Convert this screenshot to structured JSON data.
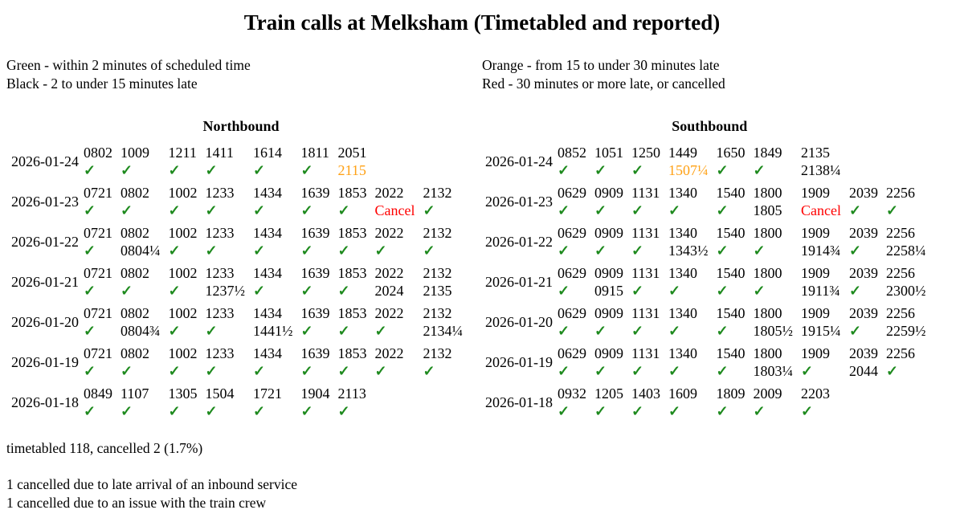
{
  "title": "Train calls at Melksham (Timetabled and reported)",
  "legend": {
    "green": "Green - within 2 minutes of scheduled time",
    "black": "Black - 2 to under 15 minutes late",
    "orange": "Orange - from 15 to under 30 minutes late",
    "red": "Red - 30 minutes or more late, or cancelled"
  },
  "colors": {
    "green": "#1e8a1e",
    "black": "#000000",
    "orange": "#ffa115",
    "red": "#ff0000"
  },
  "icons": {
    "check": "✓"
  },
  "cancel_label": "Cancel",
  "chart_data": {
    "type": "table",
    "status_meaning": {
      "green": "on time (within 2 minutes), shown as green check",
      "black": "2 to under 15 minutes late, actual time shown in black",
      "orange": "15 to under 30 minutes late, actual time shown in orange",
      "red": "30+ minutes late or cancelled, shown in red"
    },
    "sections": [
      {
        "name": "Northbound",
        "rows": [
          {
            "date": "2026-01-24",
            "calls": [
              {
                "time": "0802",
                "status": "green"
              },
              {
                "time": "1009",
                "status": "green"
              },
              {
                "time": "1211",
                "status": "green"
              },
              {
                "time": "1411",
                "status": "green"
              },
              {
                "time": "1614",
                "status": "green"
              },
              {
                "time": "1811",
                "status": "green"
              },
              {
                "time": "2051",
                "status": "orange",
                "actual": "2115"
              }
            ]
          },
          {
            "date": "2026-01-23",
            "calls": [
              {
                "time": "0721",
                "status": "green"
              },
              {
                "time": "0802",
                "status": "green"
              },
              {
                "time": "1002",
                "status": "green"
              },
              {
                "time": "1233",
                "status": "green"
              },
              {
                "time": "1434",
                "status": "green"
              },
              {
                "time": "1639",
                "status": "green"
              },
              {
                "time": "1853",
                "status": "green"
              },
              {
                "time": "2022",
                "status": "red",
                "actual": "Cancel"
              },
              {
                "time": "2132",
                "status": "green"
              }
            ]
          },
          {
            "date": "2026-01-22",
            "calls": [
              {
                "time": "0721",
                "status": "green"
              },
              {
                "time": "0802",
                "status": "black",
                "actual": "0804¼"
              },
              {
                "time": "1002",
                "status": "green"
              },
              {
                "time": "1233",
                "status": "green"
              },
              {
                "time": "1434",
                "status": "green"
              },
              {
                "time": "1639",
                "status": "green"
              },
              {
                "time": "1853",
                "status": "green"
              },
              {
                "time": "2022",
                "status": "green"
              },
              {
                "time": "2132",
                "status": "green"
              }
            ]
          },
          {
            "date": "2026-01-21",
            "calls": [
              {
                "time": "0721",
                "status": "green"
              },
              {
                "time": "0802",
                "status": "green"
              },
              {
                "time": "1002",
                "status": "green"
              },
              {
                "time": "1233",
                "status": "black",
                "actual": "1237½"
              },
              {
                "time": "1434",
                "status": "green"
              },
              {
                "time": "1639",
                "status": "green"
              },
              {
                "time": "1853",
                "status": "green"
              },
              {
                "time": "2022",
                "status": "black",
                "actual": "2024"
              },
              {
                "time": "2132",
                "status": "black",
                "actual": "2135"
              }
            ]
          },
          {
            "date": "2026-01-20",
            "calls": [
              {
                "time": "0721",
                "status": "green"
              },
              {
                "time": "0802",
                "status": "black",
                "actual": "0804¾"
              },
              {
                "time": "1002",
                "status": "green"
              },
              {
                "time": "1233",
                "status": "green"
              },
              {
                "time": "1434",
                "status": "black",
                "actual": "1441½"
              },
              {
                "time": "1639",
                "status": "green"
              },
              {
                "time": "1853",
                "status": "green"
              },
              {
                "time": "2022",
                "status": "green"
              },
              {
                "time": "2132",
                "status": "black",
                "actual": "2134¼"
              }
            ]
          },
          {
            "date": "2026-01-19",
            "calls": [
              {
                "time": "0721",
                "status": "green"
              },
              {
                "time": "0802",
                "status": "green"
              },
              {
                "time": "1002",
                "status": "green"
              },
              {
                "time": "1233",
                "status": "green"
              },
              {
                "time": "1434",
                "status": "green"
              },
              {
                "time": "1639",
                "status": "green"
              },
              {
                "time": "1853",
                "status": "green"
              },
              {
                "time": "2022",
                "status": "green"
              },
              {
                "time": "2132",
                "status": "green"
              }
            ]
          },
          {
            "date": "2026-01-18",
            "calls": [
              {
                "time": "0849",
                "status": "green"
              },
              {
                "time": "1107",
                "status": "green"
              },
              {
                "time": "1305",
                "status": "green"
              },
              {
                "time": "1504",
                "status": "green"
              },
              {
                "time": "1721",
                "status": "green"
              },
              {
                "time": "1904",
                "status": "green"
              },
              {
                "time": "2113",
                "status": "green"
              }
            ]
          }
        ]
      },
      {
        "name": "Southbound",
        "rows": [
          {
            "date": "2026-01-24",
            "calls": [
              {
                "time": "0852",
                "status": "green"
              },
              {
                "time": "1051",
                "status": "green"
              },
              {
                "time": "1250",
                "status": "green"
              },
              {
                "time": "1449",
                "status": "orange",
                "actual": "1507¼"
              },
              {
                "time": "1650",
                "status": "green"
              },
              {
                "time": "1849",
                "status": "green"
              },
              {
                "time": "2135",
                "status": "black",
                "actual": "2138¼"
              }
            ]
          },
          {
            "date": "2026-01-23",
            "calls": [
              {
                "time": "0629",
                "status": "green"
              },
              {
                "time": "0909",
                "status": "green"
              },
              {
                "time": "1131",
                "status": "green"
              },
              {
                "time": "1340",
                "status": "green"
              },
              {
                "time": "1540",
                "status": "green"
              },
              {
                "time": "1800",
                "status": "black",
                "actual": "1805"
              },
              {
                "time": "1909",
                "status": "red",
                "actual": "Cancel"
              },
              {
                "time": "2039",
                "status": "green"
              },
              {
                "time": "2256",
                "status": "green"
              }
            ]
          },
          {
            "date": "2026-01-22",
            "calls": [
              {
                "time": "0629",
                "status": "green"
              },
              {
                "time": "0909",
                "status": "green"
              },
              {
                "time": "1131",
                "status": "green"
              },
              {
                "time": "1340",
                "status": "black",
                "actual": "1343½"
              },
              {
                "time": "1540",
                "status": "green"
              },
              {
                "time": "1800",
                "status": "green"
              },
              {
                "time": "1909",
                "status": "black",
                "actual": "1914¾"
              },
              {
                "time": "2039",
                "status": "green"
              },
              {
                "time": "2256",
                "status": "black",
                "actual": "2258¼"
              }
            ]
          },
          {
            "date": "2026-01-21",
            "calls": [
              {
                "time": "0629",
                "status": "green"
              },
              {
                "time": "0909",
                "status": "black",
                "actual": "0915"
              },
              {
                "time": "1131",
                "status": "green"
              },
              {
                "time": "1340",
                "status": "green"
              },
              {
                "time": "1540",
                "status": "green"
              },
              {
                "time": "1800",
                "status": "green"
              },
              {
                "time": "1909",
                "status": "black",
                "actual": "1911¾"
              },
              {
                "time": "2039",
                "status": "green"
              },
              {
                "time": "2256",
                "status": "black",
                "actual": "2300½"
              }
            ]
          },
          {
            "date": "2026-01-20",
            "calls": [
              {
                "time": "0629",
                "status": "green"
              },
              {
                "time": "0909",
                "status": "green"
              },
              {
                "time": "1131",
                "status": "green"
              },
              {
                "time": "1340",
                "status": "green"
              },
              {
                "time": "1540",
                "status": "green"
              },
              {
                "time": "1800",
                "status": "black",
                "actual": "1805½"
              },
              {
                "time": "1909",
                "status": "black",
                "actual": "1915¼"
              },
              {
                "time": "2039",
                "status": "green"
              },
              {
                "time": "2256",
                "status": "black",
                "actual": "2259½"
              }
            ]
          },
          {
            "date": "2026-01-19",
            "calls": [
              {
                "time": "0629",
                "status": "green"
              },
              {
                "time": "0909",
                "status": "green"
              },
              {
                "time": "1131",
                "status": "green"
              },
              {
                "time": "1340",
                "status": "green"
              },
              {
                "time": "1540",
                "status": "green"
              },
              {
                "time": "1800",
                "status": "black",
                "actual": "1803¼"
              },
              {
                "time": "1909",
                "status": "green"
              },
              {
                "time": "2039",
                "status": "black",
                "actual": "2044"
              },
              {
                "time": "2256",
                "status": "green"
              }
            ]
          },
          {
            "date": "2026-01-18",
            "calls": [
              {
                "time": "0932",
                "status": "green"
              },
              {
                "time": "1205",
                "status": "green"
              },
              {
                "time": "1403",
                "status": "green"
              },
              {
                "time": "1609",
                "status": "green"
              },
              {
                "time": "1809",
                "status": "green"
              },
              {
                "time": "2009",
                "status": "green"
              },
              {
                "time": "2203",
                "status": "green"
              }
            ]
          }
        ]
      }
    ]
  },
  "footer": {
    "summary": "timetabled 118, cancelled 2 (1.7%)",
    "notes": [
      "1 cancelled due to late arrival of an inbound service",
      "1 cancelled due to an issue with the train crew"
    ]
  }
}
